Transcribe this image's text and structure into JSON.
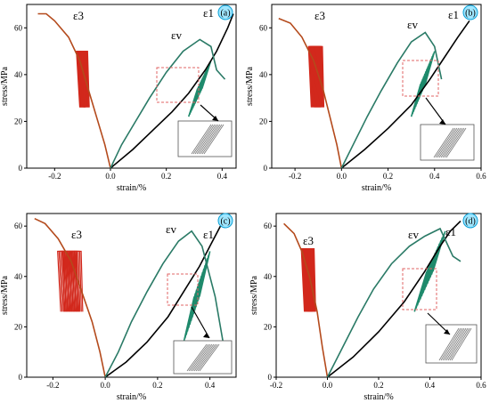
{
  "chart_data": [
    {
      "panel": "(a)",
      "type": "line",
      "xlabel": "strain/%",
      "ylabel": "stress/MPa",
      "xlim": [
        -0.3,
        0.45
      ],
      "ylim": [
        0,
        70
      ],
      "xticks": [
        -0.2,
        0.0,
        0.2,
        0.4
      ],
      "yticks": [
        0,
        20,
        40,
        60
      ],
      "annotations": [
        "ε3",
        "εv",
        "ε1"
      ],
      "series": [
        {
          "color": "#b44a1c",
          "x": [
            0.0,
            -0.02,
            -0.05,
            -0.08,
            -0.11,
            -0.15,
            -0.2,
            -0.23,
            -0.26
          ],
          "y": [
            0,
            10,
            22,
            34,
            46,
            56,
            63,
            66,
            66
          ]
        },
        {
          "color": "#000000",
          "x": [
            0.0,
            0.08,
            0.15,
            0.22,
            0.28,
            0.34,
            0.38,
            0.42,
            0.44
          ],
          "y": [
            0,
            8,
            16,
            24,
            32,
            42,
            50,
            60,
            66
          ]
        },
        {
          "color": "#2a7a66",
          "x": [
            0.0,
            0.04,
            0.09,
            0.14,
            0.2,
            0.26,
            0.32,
            0.36,
            0.38,
            0.41
          ],
          "y": [
            0,
            10,
            20,
            30,
            41,
            50,
            55,
            52,
            42,
            38
          ]
        }
      ],
      "loops": {
        "radial": {
          "x": [
            -0.11,
            -0.09
          ],
          "y": [
            26,
            50
          ]
        },
        "axial": {
          "x": [
            0.28,
            0.36
          ],
          "y": [
            22,
            46
          ]
        }
      }
    },
    {
      "panel": "(b)",
      "type": "line",
      "xlabel": "strain/%",
      "ylabel": "stress/MPa",
      "xlim": [
        -0.3,
        0.6
      ],
      "ylim": [
        0,
        70
      ],
      "xticks": [
        -0.2,
        0.0,
        0.2,
        0.4,
        0.6
      ],
      "yticks": [
        0,
        20,
        40,
        60
      ],
      "annotations": [
        "ε3",
        "εv",
        "ε1"
      ],
      "series": [
        {
          "color": "#b44a1c",
          "x": [
            0.0,
            -0.02,
            -0.05,
            -0.08,
            -0.12,
            -0.17,
            -0.22,
            -0.27
          ],
          "y": [
            0,
            10,
            22,
            34,
            46,
            56,
            62,
            64
          ]
        },
        {
          "color": "#000000",
          "x": [
            0.0,
            0.1,
            0.2,
            0.3,
            0.38,
            0.44,
            0.5,
            0.55
          ],
          "y": [
            0,
            8,
            17,
            27,
            38,
            47,
            56,
            63
          ]
        },
        {
          "color": "#2a7a66",
          "x": [
            0.0,
            0.05,
            0.11,
            0.17,
            0.24,
            0.3,
            0.36,
            0.4,
            0.43
          ],
          "y": [
            0,
            10,
            22,
            33,
            45,
            54,
            58,
            52,
            38
          ]
        }
      ],
      "loops": {
        "radial": {
          "x": [
            -0.13,
            -0.09
          ],
          "y": [
            26,
            52
          ]
        },
        "axial": {
          "x": [
            0.3,
            0.4
          ],
          "y": [
            22,
            50
          ]
        }
      }
    },
    {
      "panel": "(c)",
      "type": "line",
      "xlabel": "strain/%",
      "ylabel": "stress/MPa",
      "xlim": [
        -0.3,
        0.5
      ],
      "ylim": [
        0,
        65
      ],
      "xticks": [
        -0.2,
        0.0,
        0.2,
        0.4
      ],
      "yticks": [
        0,
        20,
        40,
        60
      ],
      "annotations": [
        "ε3",
        "εv",
        "ε1"
      ],
      "series": [
        {
          "color": "#b44a1c",
          "x": [
            0.0,
            -0.02,
            -0.05,
            -0.09,
            -0.13,
            -0.18,
            -0.23,
            -0.27
          ],
          "y": [
            0,
            10,
            22,
            34,
            46,
            55,
            61,
            63
          ]
        },
        {
          "color": "#000000",
          "x": [
            0.0,
            0.08,
            0.16,
            0.24,
            0.3,
            0.36,
            0.4,
            0.44
          ],
          "y": [
            0,
            6,
            14,
            24,
            34,
            44,
            52,
            60
          ]
        },
        {
          "color": "#2a7a66",
          "x": [
            0.0,
            0.05,
            0.1,
            0.16,
            0.22,
            0.28,
            0.33,
            0.37,
            0.42,
            0.46
          ],
          "y": [
            0,
            10,
            22,
            34,
            45,
            54,
            58,
            52,
            32,
            8
          ]
        }
      ],
      "loops": {
        "radial": {
          "x": [
            -0.17,
            -0.1
          ],
          "y": [
            26,
            50
          ]
        },
        "axial": {
          "x": [
            0.3,
            0.4
          ],
          "y": [
            14,
            50
          ]
        }
      }
    },
    {
      "panel": "(d)",
      "type": "line",
      "xlabel": "strain/%",
      "ylabel": "stress/MPa",
      "xlim": [
        -0.2,
        0.6
      ],
      "ylim": [
        0,
        65
      ],
      "xticks": [
        -0.2,
        0.0,
        0.2,
        0.4,
        0.6
      ],
      "yticks": [
        0,
        20,
        40,
        60
      ],
      "annotations": [
        "ε3",
        "εv",
        "ε1"
      ],
      "series": [
        {
          "color": "#b44a1c",
          "x": [
            0.0,
            -0.02,
            -0.04,
            -0.07,
            -0.1,
            -0.13,
            -0.17
          ],
          "y": [
            0,
            12,
            26,
            40,
            50,
            57,
            61
          ]
        },
        {
          "color": "#000000",
          "x": [
            0.0,
            0.1,
            0.2,
            0.3,
            0.38,
            0.44,
            0.48,
            0.52
          ],
          "y": [
            0,
            8,
            18,
            30,
            42,
            52,
            58,
            62
          ]
        },
        {
          "color": "#2a7a66",
          "x": [
            0.0,
            0.06,
            0.12,
            0.18,
            0.25,
            0.32,
            0.38,
            0.44,
            0.49,
            0.52
          ],
          "y": [
            0,
            12,
            24,
            35,
            45,
            52,
            56,
            59,
            48,
            46
          ]
        }
      ],
      "loops": {
        "radial": {
          "x": [
            -0.09,
            -0.06
          ],
          "y": [
            26,
            51
          ]
        },
        "axial": {
          "x": [
            0.34,
            0.46
          ],
          "y": [
            26,
            58
          ]
        }
      }
    }
  ]
}
